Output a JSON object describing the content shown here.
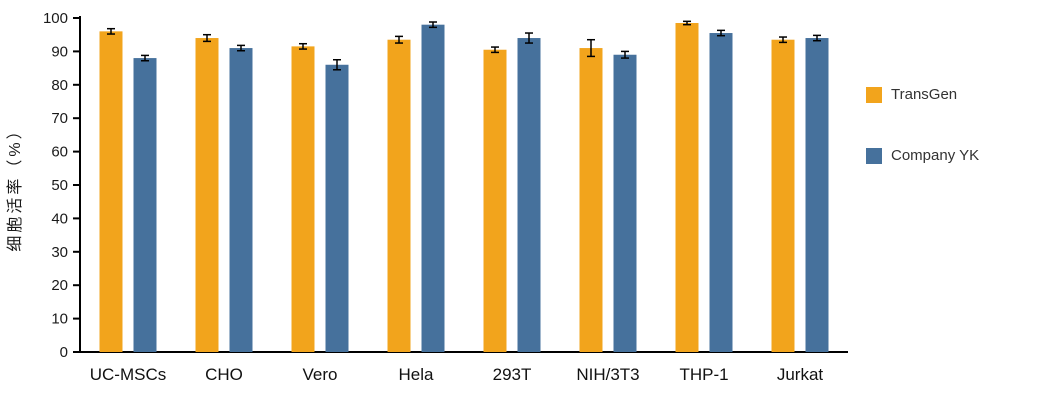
{
  "chart_data": {
    "type": "bar",
    "title": "",
    "xlabel": "",
    "ylabel": "细胞活率（%）",
    "ylim": [
      0,
      100
    ],
    "ytick_step": 10,
    "grid": false,
    "legend_position": "right",
    "categories": [
      "UC-MSCs",
      "CHO",
      "Vero",
      "Hela",
      "293T",
      "NIH/3T3",
      "THP-1",
      "Jurkat"
    ],
    "series": [
      {
        "name": "TransGen",
        "color": "#F2A41C",
        "values": [
          96,
          94,
          91.5,
          93.5,
          90.5,
          91,
          98.5,
          93.5
        ],
        "errors": [
          0.8,
          1.0,
          0.8,
          1.0,
          0.8,
          2.5,
          0.5,
          0.8
        ]
      },
      {
        "name": "Company YK",
        "color": "#46719C",
        "values": [
          88,
          91,
          86,
          98,
          94,
          89,
          95.5,
          94
        ],
        "errors": [
          0.8,
          0.8,
          1.5,
          0.8,
          1.5,
          1.0,
          0.8,
          0.8
        ]
      }
    ]
  }
}
